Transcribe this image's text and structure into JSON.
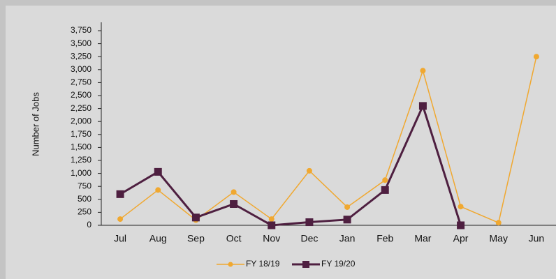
{
  "chart_data": {
    "type": "line",
    "y_label": "Number of Jobs",
    "categories": [
      "Jul",
      "Aug",
      "Sep",
      "Oct",
      "Nov",
      "Dec",
      "Jan",
      "Feb",
      "Mar",
      "Apr",
      "May",
      "Jun"
    ],
    "series": [
      {
        "name": "FY 18/19",
        "color": "#f0a830",
        "marker": "circle",
        "values": [
          120,
          680,
          100,
          640,
          120,
          1050,
          350,
          870,
          2980,
          360,
          50,
          3250
        ]
      },
      {
        "name": "FY 19/20",
        "color": "#4e1f40",
        "marker": "square",
        "values": [
          600,
          1030,
          150,
          410,
          0,
          60,
          110,
          680,
          2300,
          0,
          null,
          null
        ]
      }
    ],
    "ylim": [
      0,
      3750
    ],
    "yticks": [
      0,
      250,
      500,
      750,
      {
        "value": 1000,
        "label": "1,000"
      },
      {
        "value": 1250,
        "label": "1,250"
      },
      {
        "value": 1500,
        "label": "1,500"
      },
      {
        "value": 1750,
        "label": "1,750"
      },
      {
        "value": 2000,
        "label": "2,000"
      },
      {
        "value": 2250,
        "label": "2,250"
      },
      {
        "value": 2500,
        "label": "2,500"
      },
      {
        "value": 2750,
        "label": "2,750"
      },
      {
        "value": 3000,
        "label": "3,000"
      },
      {
        "value": 3250,
        "label": "3,250"
      },
      {
        "value": 3500,
        "label": "3,500"
      },
      {
        "value": 3750,
        "label": "3,750"
      }
    ],
    "grid": false,
    "legend": "bottom"
  }
}
